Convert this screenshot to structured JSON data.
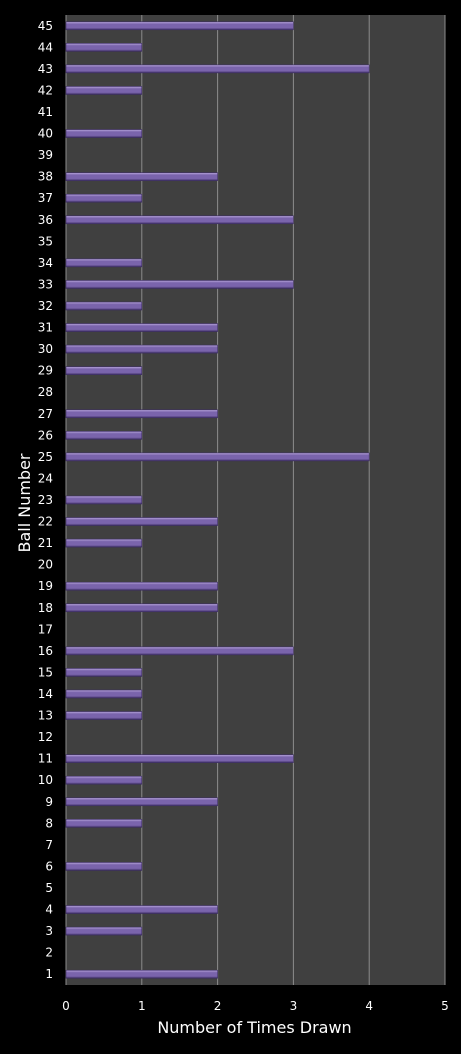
{
  "chart_data": {
    "type": "bar",
    "orientation": "horizontal",
    "title": "",
    "xlabel": "Number of Times Drawn",
    "ylabel": "Ball Number",
    "xlim": [
      0,
      5
    ],
    "xticks": [
      "0",
      "1",
      "2",
      "3",
      "4",
      "5"
    ],
    "grid": true,
    "legend": "none",
    "categories": [
      "1",
      "2",
      "3",
      "4",
      "5",
      "6",
      "7",
      "8",
      "9",
      "10",
      "11",
      "12",
      "13",
      "14",
      "15",
      "16",
      "17",
      "18",
      "19",
      "20",
      "21",
      "22",
      "23",
      "24",
      "25",
      "26",
      "27",
      "28",
      "29",
      "30",
      "31",
      "32",
      "33",
      "34",
      "35",
      "36",
      "37",
      "38",
      "39",
      "40",
      "41",
      "42",
      "43",
      "44",
      "45"
    ],
    "values": [
      2,
      0,
      1,
      2,
      0,
      1,
      0,
      1,
      2,
      1,
      3,
      0,
      1,
      1,
      1,
      3,
      0,
      2,
      2,
      0,
      1,
      2,
      1,
      0,
      4,
      1,
      2,
      0,
      1,
      2,
      2,
      1,
      3,
      1,
      0,
      3,
      1,
      2,
      0,
      1,
      0,
      1,
      4,
      1,
      3
    ],
    "colors": {
      "background": "#000000",
      "plot_area": "#404040",
      "grid": "#8c8c8c",
      "bar": "#7a64ac",
      "bar_highlight": "#b9a7dd",
      "bar_shadow": "#3c2d62",
      "text": "#ffffff"
    }
  }
}
